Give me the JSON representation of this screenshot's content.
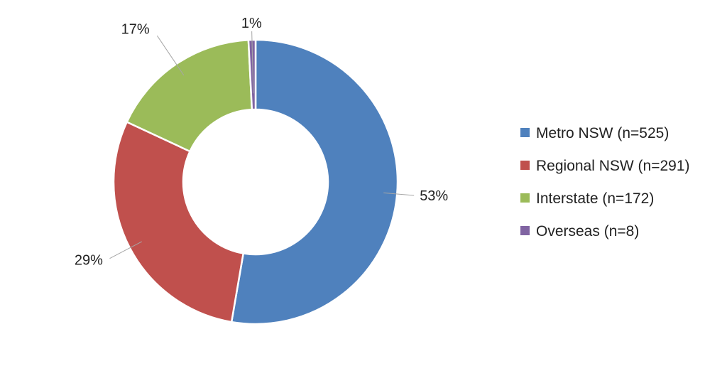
{
  "chart_data": {
    "type": "pie",
    "variant": "donut",
    "title": "",
    "categories": [
      "Metro NSW (n=525)",
      "Regional NSW (n=291)",
      "Interstate (n=172)",
      "Overseas (n=8)"
    ],
    "values": [
      525,
      291,
      172,
      8
    ],
    "percent_labels": [
      "53%",
      "29%",
      "17%",
      "1%"
    ],
    "colors": [
      "#4F81BD",
      "#C0504D",
      "#9BBB59",
      "#8064A2"
    ],
    "legend": {
      "placement": "right",
      "entries": [
        "Metro NSW (n=525)",
        "Regional NSW (n=291)",
        "Interstate (n=172)",
        "Overseas (n=8)"
      ]
    }
  }
}
